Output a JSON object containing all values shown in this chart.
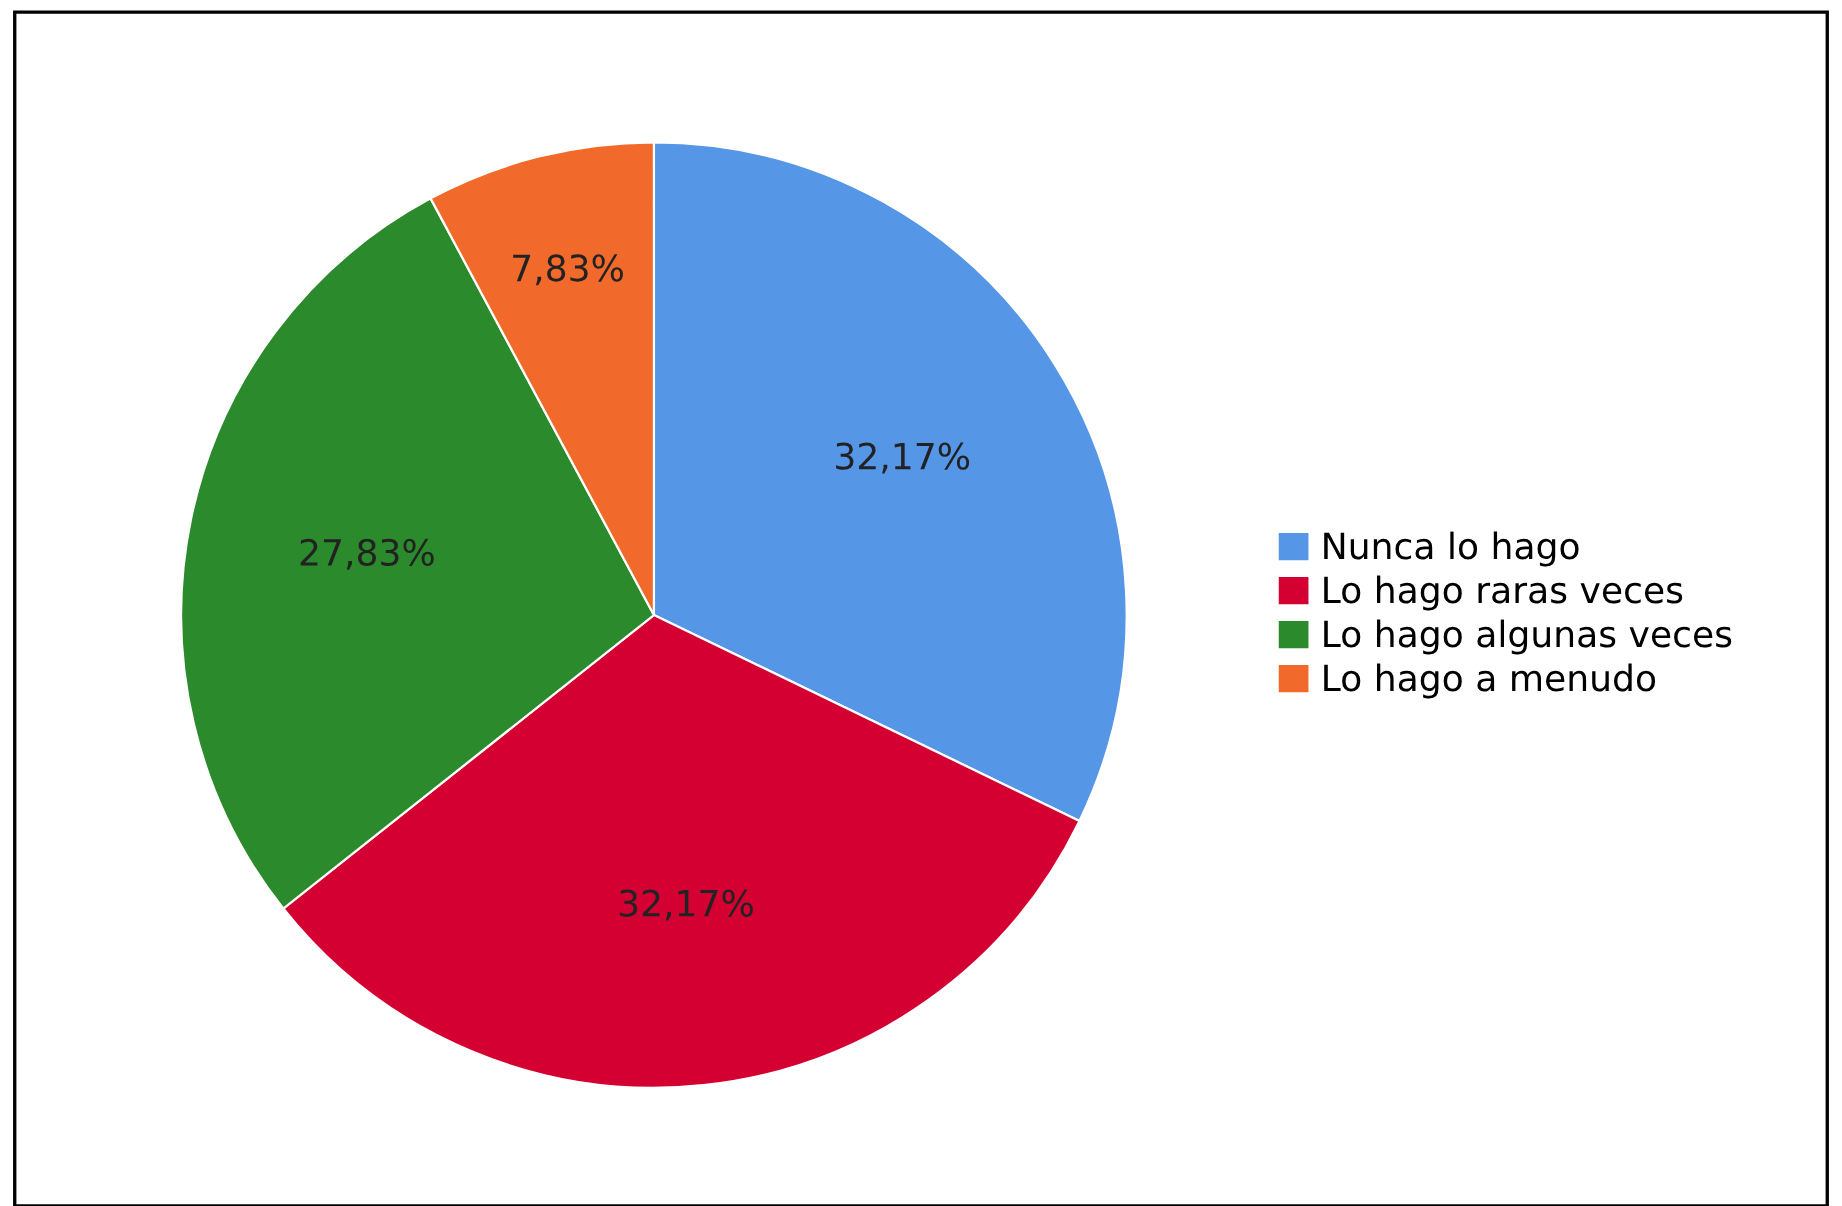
{
  "chart_data": {
    "type": "pie",
    "categories": [
      "Nunca lo hago",
      "Lo hago raras veces",
      "Lo hago algunas veces",
      "Lo hago a menudo"
    ],
    "values": [
      32.17,
      32.17,
      27.83,
      7.83
    ],
    "value_labels": [
      "32,17%",
      "32,17%",
      "27,83%",
      "7,83%"
    ],
    "colors": [
      "#5596e6",
      "#d50032",
      "#2b8a2b",
      "#f26a2b"
    ],
    "legend": "right"
  }
}
